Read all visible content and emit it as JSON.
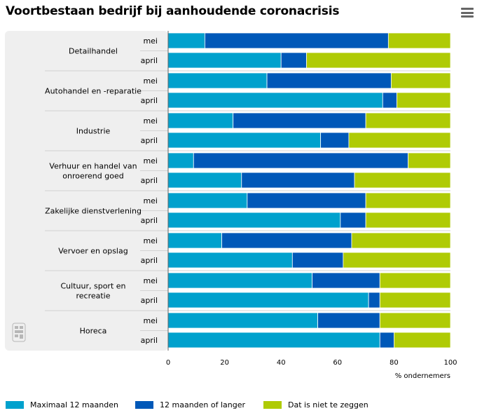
{
  "title": "Voortbestaan bedrijf bij aanhoudende coronacrisis",
  "menu": {
    "icon": "hamburger-menu-icon"
  },
  "logo": {
    "icon": "cbs-logo-icon"
  },
  "colors": {
    "series": [
      "#00a1cd",
      "#0058b8",
      "#afcb05"
    ],
    "panel": "#efefef",
    "divider": "#d2d2d2",
    "axis": "#666666"
  },
  "chart_data": {
    "type": "bar",
    "orientation": "horizontal",
    "stacked": true,
    "title": "Voortbestaan bedrijf bij aanhoudende coronacrisis",
    "xlabel": "% ondernemers",
    "xlim": [
      0,
      100
    ],
    "xticks": [
      0,
      20,
      40,
      60,
      80,
      100
    ],
    "legend_position": "bottom",
    "groups": [
      "Detailhandel",
      "Autohandel en -reparatie",
      "Industrie",
      "Verhuur en handel van onroerend goed",
      "Zakelijke dienstverlening",
      "Vervoer en opslag",
      "Cultuur, sport en recreatie",
      "Horeca"
    ],
    "periods": [
      "mei",
      "april"
    ],
    "series": [
      {
        "name": "Maximaal 12 maanden",
        "values": [
          [
            13,
            40
          ],
          [
            35,
            76
          ],
          [
            23,
            54
          ],
          [
            9,
            26
          ],
          [
            28,
            61
          ],
          [
            19,
            44
          ],
          [
            51,
            71
          ],
          [
            53,
            75
          ]
        ]
      },
      {
        "name": "12 maanden of langer",
        "values": [
          [
            65,
            9
          ],
          [
            44,
            5
          ],
          [
            47,
            10
          ],
          [
            76,
            40
          ],
          [
            42,
            9
          ],
          [
            46,
            18
          ],
          [
            24,
            4
          ],
          [
            22,
            5
          ]
        ]
      },
      {
        "name": "Dat is niet te zeggen",
        "values": [
          [
            22,
            51
          ],
          [
            21,
            19
          ],
          [
            30,
            36
          ],
          [
            15,
            34
          ],
          [
            30,
            30
          ],
          [
            35,
            38
          ],
          [
            25,
            25
          ],
          [
            25,
            20
          ]
        ]
      }
    ]
  }
}
